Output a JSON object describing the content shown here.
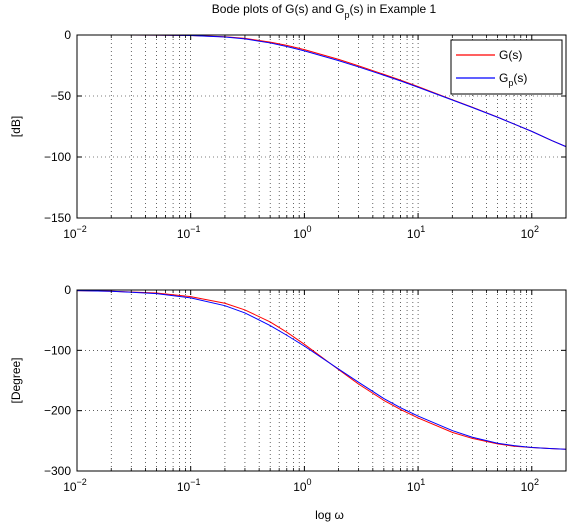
{
  "figure": {
    "title_parts": {
      "a": "Bode plots of G(s) and G",
      "sub": "p",
      "b": "(s) in Example 1"
    }
  },
  "colors": {
    "series_g": "#ff0000",
    "series_gp": "#0000ff",
    "grid": "#000000"
  },
  "chart_data": [
    {
      "type": "line",
      "panel": "magnitude",
      "ylabel": "[dB]",
      "xlabel": "",
      "x_scale": "log",
      "xlim": [
        0.01,
        200
      ],
      "ylim": [
        -150,
        0
      ],
      "yticks": [
        0,
        -50,
        -100,
        -150
      ],
      "yticklabels": [
        "0",
        "−50",
        "−100",
        "−150"
      ],
      "xticks": [
        0.01,
        0.1,
        1,
        10,
        100
      ],
      "xticklabels": [
        {
          "base": "10",
          "exp": "−2"
        },
        {
          "base": "10",
          "exp": "−1"
        },
        {
          "base": "10",
          "exp": "0"
        },
        {
          "base": "10",
          "exp": "1"
        },
        {
          "base": "10",
          "exp": "2"
        }
      ],
      "grid": true,
      "legend": {
        "placement": "top-right",
        "entries": [
          {
            "text": "G(s)"
          },
          {
            "text_main": "G",
            "text_sub": "p",
            "text_tail": "(s)"
          }
        ]
      },
      "x": [
        0.01,
        0.02,
        0.05,
        0.1,
        0.2,
        0.3,
        0.5,
        0.7,
        1,
        2,
        3,
        5,
        7,
        10,
        20,
        30,
        50,
        70,
        100,
        150,
        200
      ],
      "series": [
        {
          "values": [
            0,
            0,
            -0.1,
            -0.4,
            -1.4,
            -2.8,
            -5.8,
            -8.5,
            -12.0,
            -20.0,
            -25.3,
            -32.3,
            -37.0,
            -42.3,
            -53.0,
            -59.2,
            -67.3,
            -73.0,
            -79.0,
            -86.5,
            -91.5
          ]
        },
        {
          "values": [
            0,
            0,
            -0.1,
            -0.4,
            -1.6,
            -3.2,
            -6.5,
            -9.4,
            -13.0,
            -21.0,
            -26.2,
            -33.0,
            -37.6,
            -42.8,
            -53.3,
            -59.4,
            -67.4,
            -73.0,
            -79.0,
            -86.5,
            -91.5
          ]
        }
      ]
    },
    {
      "type": "line",
      "panel": "phase",
      "ylabel": "[Degree]",
      "xlabel": "log ω",
      "x_scale": "log",
      "xlim": [
        0.01,
        200
      ],
      "ylim": [
        -300,
        0
      ],
      "yticks": [
        0,
        -100,
        -200,
        -300
      ],
      "yticklabels": [
        "0",
        "−100",
        "−200",
        "−300"
      ],
      "xticks": [
        0.01,
        0.1,
        1,
        10,
        100
      ],
      "xticklabels": [
        {
          "base": "10",
          "exp": "−2"
        },
        {
          "base": "10",
          "exp": "−1"
        },
        {
          "base": "10",
          "exp": "0"
        },
        {
          "base": "10",
          "exp": "1"
        },
        {
          "base": "10",
          "exp": "2"
        }
      ],
      "grid": true,
      "x": [
        0.01,
        0.02,
        0.05,
        0.1,
        0.2,
        0.3,
        0.5,
        0.7,
        1,
        2,
        3,
        5,
        7,
        10,
        20,
        30,
        50,
        70,
        100,
        150,
        200
      ],
      "series": [
        {
          "values": [
            -1,
            -2,
            -5,
            -11,
            -22,
            -33,
            -53,
            -70,
            -90,
            -132,
            -156,
            -183,
            -198,
            -212,
            -236,
            -246,
            -255,
            -259,
            -261,
            -263,
            -264
          ]
        },
        {
          "values": [
            -1,
            -2,
            -6,
            -13,
            -26,
            -38,
            -59,
            -75,
            -93,
            -131,
            -153,
            -180,
            -195,
            -209,
            -233,
            -244,
            -254,
            -258,
            -261,
            -263,
            -264
          ]
        }
      ]
    }
  ]
}
